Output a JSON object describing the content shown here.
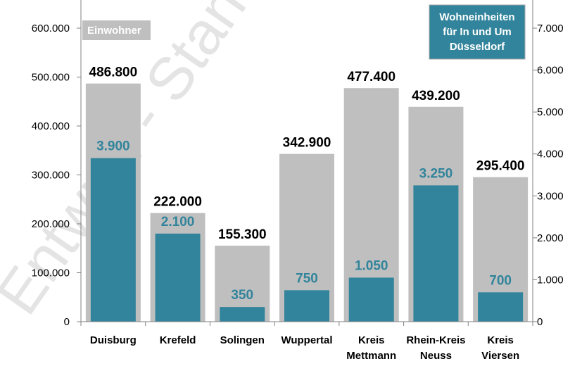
{
  "watermark": "Entwurf - Stand",
  "chart_data": {
    "type": "bar",
    "categories": [
      [
        "Duisburg"
      ],
      [
        "Krefeld"
      ],
      [
        "Solingen"
      ],
      [
        "Wuppertal"
      ],
      [
        "Kreis",
        "Mettmann"
      ],
      [
        "Rhein-Kreis",
        "Neuss"
      ],
      [
        "Kreis",
        "Viersen"
      ]
    ],
    "series": [
      {
        "name": "Einwohner",
        "axis": "left",
        "color": "#bfbfbf",
        "values": [
          486800,
          222000,
          155300,
          342900,
          477400,
          439200,
          295400
        ],
        "labels": [
          "486.800",
          "222.000",
          "155.300",
          "342.900",
          "477.400",
          "439.200",
          "295.400"
        ]
      },
      {
        "name": "Wohneinheiten für In und Um Düsseldorf",
        "axis": "right",
        "color": "#31849b",
        "values": [
          3900,
          2100,
          350,
          750,
          1050,
          3250,
          700
        ],
        "labels": [
          "3.900",
          "2.100",
          "350",
          "750",
          "1.050",
          "3.250",
          "700"
        ]
      }
    ],
    "legend": {
      "left_label": "Einwohner",
      "right_label_lines": [
        "Wohneinheiten",
        "für In und Um",
        "Düsseldorf"
      ]
    },
    "y_left": {
      "lim": [
        0,
        600000
      ],
      "ticks": [
        0,
        100000,
        200000,
        300000,
        400000,
        500000,
        600000
      ],
      "tick_labels": [
        "0",
        "100.000",
        "200.000",
        "300.000",
        "400.000",
        "500.000",
        "600.000"
      ]
    },
    "y_right": {
      "lim": [
        0,
        7000
      ],
      "ticks": [
        0,
        1000,
        2000,
        3000,
        4000,
        5000,
        6000,
        7000
      ],
      "tick_labels": [
        "0",
        "1.000",
        "2.000",
        "3.000",
        "4.000",
        "5.000",
        "6.000",
        "7.000"
      ]
    },
    "grid": false,
    "colors": {
      "population_label": "#000000",
      "units_label": "#31849b",
      "axis": "#808080",
      "legend_teal": "#31849b",
      "legend_gray": "#bfbfbf",
      "watermark": "#d9d9d9"
    }
  }
}
